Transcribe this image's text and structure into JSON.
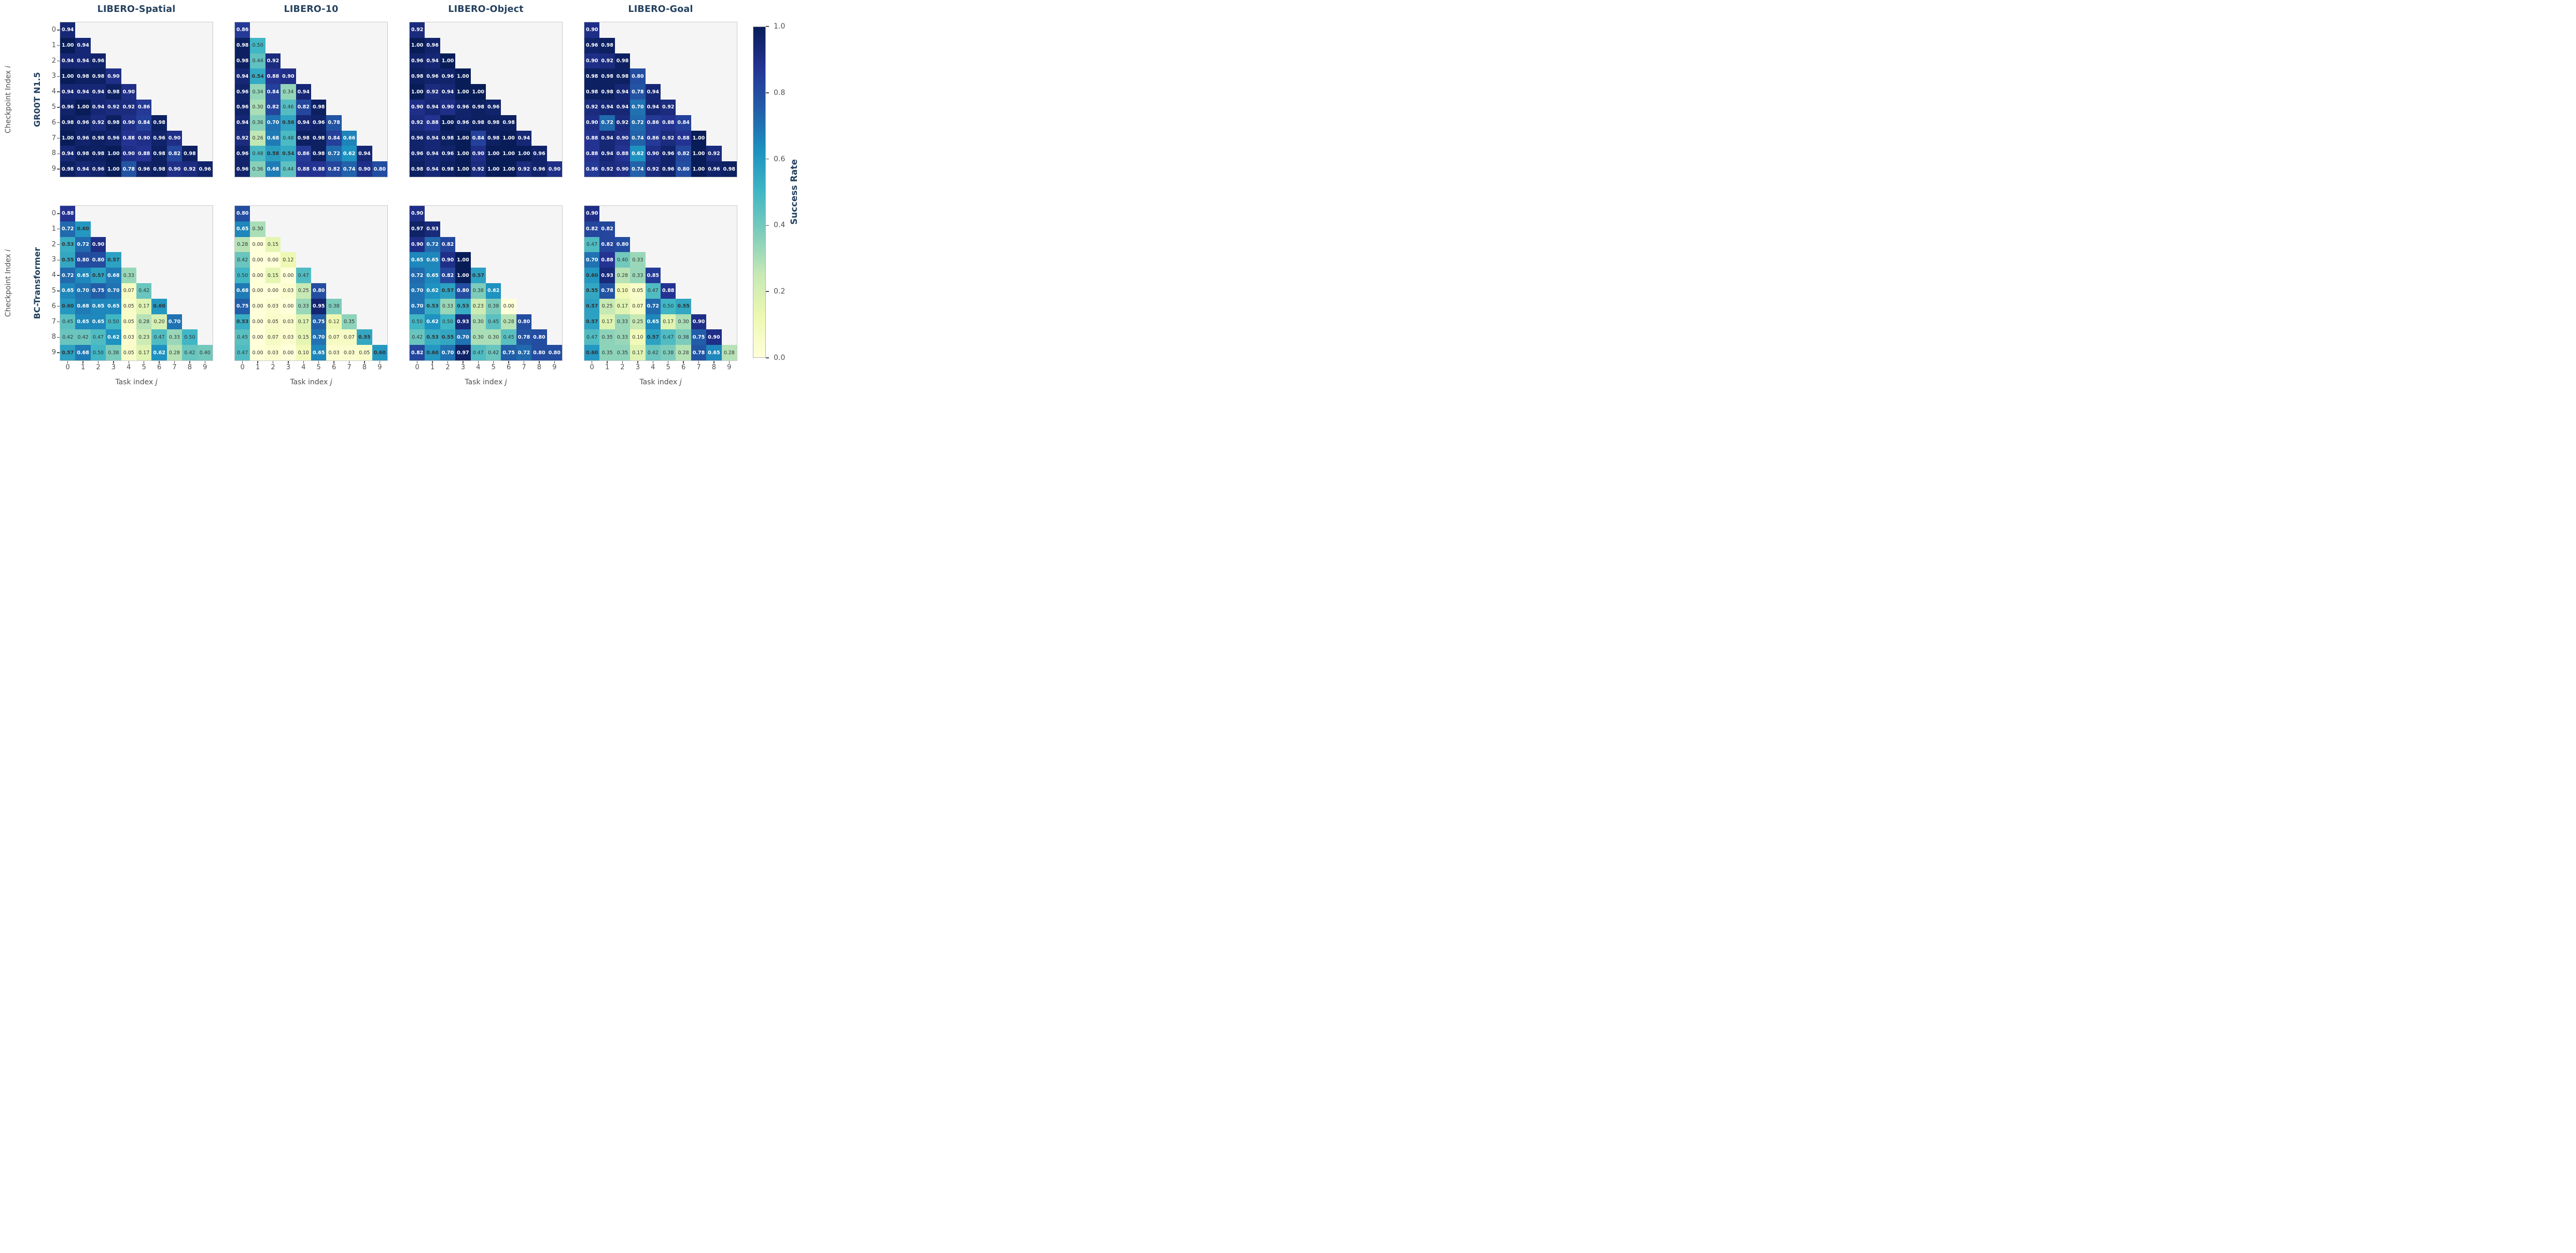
{
  "chart_data": {
    "type": "heatmap",
    "layout": "2 rows x 4 columns, lower-triangular matrices, annotated",
    "colormap": "YlGnBu",
    "vmin": 0.0,
    "vmax": 1.0,
    "grid": false,
    "x_ticks": [
      "0",
      "1",
      "2",
      "3",
      "4",
      "5",
      "6",
      "7",
      "8",
      "9"
    ],
    "y_ticks": [
      "0",
      "1",
      "2",
      "3",
      "4",
      "5",
      "6",
      "7",
      "8",
      "9"
    ],
    "xlabel": {
      "prefix": "Task index ",
      "var": "j"
    },
    "ylabel": {
      "prefix": "Checkpoint Index ",
      "var": "i"
    },
    "colorbar": {
      "label": "Success Rate",
      "ticks": [
        "1.0",
        "0.8",
        "0.6",
        "0.4",
        "0.2",
        "0.0"
      ],
      "position": "right"
    },
    "annotation_rules": {
      "bold_if_greater_than": 0.5,
      "white_text_if_greater_than": 0.6
    },
    "rows": [
      {
        "model": "GR00T N1.5",
        "plots": [
          {
            "title": "LIBERO-Spatial",
            "matrix": [
              [
                0.94
              ],
              [
                1.0,
                0.94
              ],
              [
                0.94,
                0.94,
                0.96
              ],
              [
                1.0,
                0.98,
                0.98,
                0.9
              ],
              [
                0.94,
                0.94,
                0.94,
                0.98,
                0.9
              ],
              [
                0.96,
                1.0,
                0.94,
                0.92,
                0.92,
                0.86
              ],
              [
                0.98,
                0.96,
                0.92,
                0.98,
                0.9,
                0.84,
                0.98
              ],
              [
                1.0,
                0.96,
                0.98,
                0.96,
                0.88,
                0.9,
                0.96,
                0.9
              ],
              [
                0.94,
                0.98,
                0.98,
                1.0,
                0.9,
                0.88,
                0.98,
                0.82,
                0.98
              ],
              [
                0.98,
                0.94,
                0.96,
                1.0,
                0.78,
                0.96,
                0.98,
                0.9,
                0.92,
                0.96
              ]
            ]
          },
          {
            "title": "LIBERO-10",
            "matrix": [
              [
                0.86
              ],
              [
                0.98,
                0.5
              ],
              [
                0.98,
                0.44,
                0.92
              ],
              [
                0.94,
                0.54,
                0.88,
                0.9
              ],
              [
                0.96,
                0.34,
                0.84,
                0.34,
                0.94
              ],
              [
                0.96,
                0.3,
                0.82,
                0.46,
                0.82,
                0.98
              ],
              [
                0.94,
                0.36,
                0.7,
                0.56,
                0.94,
                0.96,
                0.78
              ],
              [
                0.92,
                0.26,
                0.68,
                0.48,
                0.98,
                0.98,
                0.84,
                0.66
              ],
              [
                0.96,
                0.48,
                0.58,
                0.54,
                0.86,
                0.98,
                0.72,
                0.62,
                0.94
              ],
              [
                0.96,
                0.36,
                0.68,
                0.44,
                0.88,
                0.88,
                0.82,
                0.74,
                0.9,
                0.8
              ]
            ]
          },
          {
            "title": "LIBERO-Object",
            "matrix": [
              [
                0.92
              ],
              [
                1.0,
                0.96
              ],
              [
                0.96,
                0.94,
                1.0
              ],
              [
                0.98,
                0.96,
                0.96,
                1.0
              ],
              [
                1.0,
                0.92,
                0.94,
                1.0,
                1.0
              ],
              [
                0.9,
                0.94,
                0.9,
                0.96,
                0.98,
                0.96
              ],
              [
                0.92,
                0.88,
                1.0,
                0.96,
                0.98,
                0.98,
                0.98
              ],
              [
                0.96,
                0.94,
                0.98,
                1.0,
                0.84,
                0.98,
                1.0,
                0.94
              ],
              [
                0.96,
                0.94,
                0.96,
                1.0,
                0.9,
                1.0,
                1.0,
                1.0,
                0.96
              ],
              [
                0.98,
                0.94,
                0.98,
                1.0,
                0.92,
                1.0,
                1.0,
                0.92,
                0.96,
                0.9
              ]
            ]
          },
          {
            "title": "LIBERO-Goal",
            "matrix": [
              [
                0.9
              ],
              [
                0.96,
                0.98
              ],
              [
                0.9,
                0.92,
                0.98
              ],
              [
                0.98,
                0.98,
                0.98,
                0.8
              ],
              [
                0.98,
                0.98,
                0.94,
                0.78,
                0.94
              ],
              [
                0.92,
                0.94,
                0.94,
                0.7,
                0.94,
                0.92
              ],
              [
                0.9,
                0.72,
                0.92,
                0.72,
                0.86,
                0.88,
                0.84
              ],
              [
                0.88,
                0.94,
                0.9,
                0.74,
                0.86,
                0.92,
                0.88,
                1.0
              ],
              [
                0.88,
                0.94,
                0.88,
                0.62,
                0.9,
                0.96,
                0.82,
                1.0,
                0.92
              ],
              [
                0.86,
                0.92,
                0.9,
                0.74,
                0.92,
                0.96,
                0.8,
                1.0,
                0.96,
                0.98
              ]
            ]
          }
        ]
      },
      {
        "model": "BC-Transformer",
        "plots": [
          {
            "title": "LIBERO-Spatial",
            "matrix": [
              [
                0.88
              ],
              [
                0.72,
                0.6
              ],
              [
                0.53,
                0.72,
                0.9
              ],
              [
                0.55,
                0.8,
                0.8,
                0.57
              ],
              [
                0.72,
                0.65,
                0.57,
                0.68,
                0.33
              ],
              [
                0.65,
                0.7,
                0.75,
                0.7,
                0.07,
                0.42
              ],
              [
                0.6,
                0.68,
                0.65,
                0.65,
                0.05,
                0.17,
                0.6
              ],
              [
                0.45,
                0.65,
                0.65,
                0.5,
                0.05,
                0.28,
                0.2,
                0.7
              ],
              [
                0.42,
                0.42,
                0.47,
                0.62,
                0.03,
                0.23,
                0.47,
                0.33,
                0.5
              ],
              [
                0.57,
                0.68,
                0.5,
                0.38,
                0.05,
                0.17,
                0.62,
                0.28,
                0.42,
                0.4
              ]
            ]
          },
          {
            "title": "LIBERO-10",
            "matrix": [
              [
                0.8
              ],
              [
                0.65,
                0.3
              ],
              [
                0.28,
                0.0,
                0.15
              ],
              [
                0.42,
                0.0,
                0.0,
                0.12
              ],
              [
                0.5,
                0.0,
                0.15,
                0.0,
                0.47
              ],
              [
                0.68,
                0.0,
                0.0,
                0.03,
                0.25,
                0.8
              ],
              [
                0.75,
                0.0,
                0.03,
                0.0,
                0.33,
                0.95,
                0.38
              ],
              [
                0.53,
                0.0,
                0.05,
                0.03,
                0.17,
                0.75,
                0.12,
                0.35
              ],
              [
                0.45,
                0.0,
                0.07,
                0.03,
                0.15,
                0.7,
                0.07,
                0.07,
                0.55
              ],
              [
                0.47,
                0.0,
                0.03,
                0.0,
                0.1,
                0.65,
                0.03,
                0.03,
                0.05,
                0.6
              ]
            ]
          },
          {
            "title": "LIBERO-Object",
            "matrix": [
              [
                0.9
              ],
              [
                0.97,
                0.93
              ],
              [
                0.9,
                0.72,
                0.82
              ],
              [
                0.65,
                0.65,
                0.9,
                1.0
              ],
              [
                0.72,
                0.65,
                0.82,
                1.0,
                0.57
              ],
              [
                0.7,
                0.62,
                0.57,
                0.8,
                0.38,
                0.62
              ],
              [
                0.7,
                0.53,
                0.33,
                0.53,
                0.23,
                0.38,
                0.0
              ],
              [
                0.5,
                0.62,
                0.5,
                0.93,
                0.3,
                0.45,
                0.28,
                0.8
              ],
              [
                0.42,
                0.53,
                0.55,
                0.7,
                0.3,
                0.3,
                0.45,
                0.78,
                0.8
              ],
              [
                0.82,
                0.6,
                0.7,
                0.97,
                0.47,
                0.42,
                0.75,
                0.72,
                0.8,
                0.8
              ]
            ]
          },
          {
            "title": "LIBERO-Goal",
            "matrix": [
              [
                0.9
              ],
              [
                0.82,
                0.82
              ],
              [
                0.47,
                0.82,
                0.8
              ],
              [
                0.7,
                0.88,
                0.4,
                0.33
              ],
              [
                0.6,
                0.93,
                0.28,
                0.33,
                0.85
              ],
              [
                0.55,
                0.78,
                0.1,
                0.05,
                0.47,
                0.88
              ],
              [
                0.57,
                0.25,
                0.17,
                0.07,
                0.72,
                0.5,
                0.55
              ],
              [
                0.57,
                0.17,
                0.33,
                0.25,
                0.65,
                0.17,
                0.3,
                0.9
              ],
              [
                0.47,
                0.35,
                0.33,
                0.1,
                0.57,
                0.47,
                0.38,
                0.75,
                0.9
              ],
              [
                0.6,
                0.35,
                0.35,
                0.17,
                0.42,
                0.38,
                0.28,
                0.78,
                0.65,
                0.28
              ]
            ]
          }
        ]
      }
    ],
    "colors": {
      "heading_navy": "#24415f",
      "tick_gray": "#4f4f4f",
      "plot_background": "#f5f5f6",
      "annotation_dark": "#333333",
      "annotation_light": "#ffffff",
      "ylgnbu_anchors": [
        "#ffffd9",
        "#edf8b1",
        "#c7e9b4",
        "#7fcdbb",
        "#41b6c4",
        "#1d91c0",
        "#225ea8",
        "#253494",
        "#081d58"
      ]
    }
  }
}
